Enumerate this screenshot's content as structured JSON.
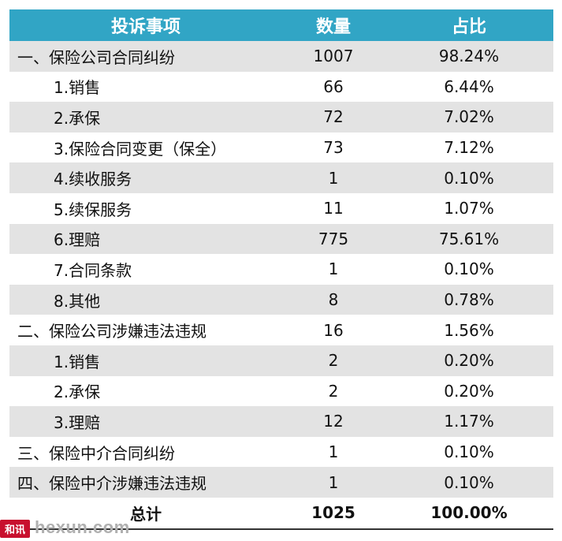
{
  "header": {
    "col1": "投诉事项",
    "col2": "数量",
    "col3": "占比"
  },
  "rows": [
    {
      "label": "一、保险公司合同纠纷",
      "count": "1007",
      "pct": "98.24%",
      "indent": false
    },
    {
      "label": "1.销售",
      "count": "66",
      "pct": "6.44%",
      "indent": true
    },
    {
      "label": "2.承保",
      "count": "72",
      "pct": "7.02%",
      "indent": true
    },
    {
      "label": "3.保险合同变更（保全）",
      "count": "73",
      "pct": "7.12%",
      "indent": true
    },
    {
      "label": "4.续收服务",
      "count": "1",
      "pct": "0.10%",
      "indent": true
    },
    {
      "label": "5.续保服务",
      "count": "11",
      "pct": "1.07%",
      "indent": true
    },
    {
      "label": "6.理赔",
      "count": "775",
      "pct": "75.61%",
      "indent": true
    },
    {
      "label": "7.合同条款",
      "count": "1",
      "pct": "0.10%",
      "indent": true
    },
    {
      "label": "8.其他",
      "count": "8",
      "pct": "0.78%",
      "indent": true
    },
    {
      "label": "二、保险公司涉嫌违法违规",
      "count": "16",
      "pct": "1.56%",
      "indent": false
    },
    {
      "label": "1.销售",
      "count": "2",
      "pct": "0.20%",
      "indent": true
    },
    {
      "label": "2.承保",
      "count": "2",
      "pct": "0.20%",
      "indent": true
    },
    {
      "label": "3.理赔",
      "count": "12",
      "pct": "1.17%",
      "indent": true
    },
    {
      "label": "三、保险中介合同纠纷",
      "count": "1",
      "pct": "0.10%",
      "indent": false
    },
    {
      "label": "四、保险中介涉嫌违法违规",
      "count": "1",
      "pct": "0.10%",
      "indent": false
    }
  ],
  "total": {
    "label": "总计",
    "count": "1025",
    "pct": "100.00%"
  },
  "watermark": {
    "logo": "和讯",
    "text": "hexun.com"
  },
  "colors": {
    "header_bg": "#31a5c5",
    "stripe": "#e3e3e3"
  }
}
